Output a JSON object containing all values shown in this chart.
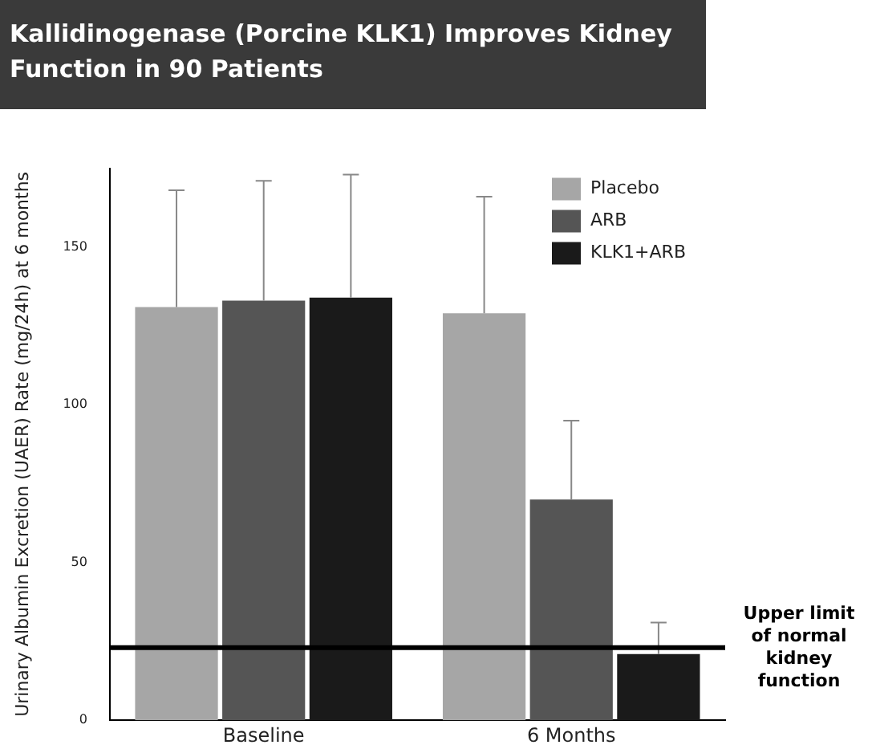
{
  "chart_data": {
    "type": "bar",
    "title": "Kallidinogenase (Porcine KLK1) Improves Kidney Function in 90 Patients",
    "ylabel": "Urinary Albumin Excretion (UAER) Rate (mg/24h) at 6 months",
    "categories": [
      "Baseline",
      "6 Months"
    ],
    "series": [
      {
        "name": "Placebo",
        "color": "#a6a6a6",
        "values": [
          131,
          129
        ],
        "errors": [
          [
            131,
            168
          ],
          [
            129,
            166
          ]
        ]
      },
      {
        "name": "ARB",
        "color": "#555555",
        "values": [
          133,
          70
        ],
        "errors": [
          [
            133,
            171
          ],
          [
            70,
            95
          ]
        ]
      },
      {
        "name": "KLK1+ARB",
        "color": "#1a1a1a",
        "values": [
          134,
          21
        ],
        "errors": [
          [
            134,
            173
          ],
          [
            21,
            31
          ]
        ]
      }
    ],
    "ylim": [
      0,
      175
    ],
    "yticks": [
      0,
      50,
      100,
      150
    ],
    "grid": false,
    "legend": "top right",
    "ref_lines": [
      {
        "axis": "y",
        "value": 23,
        "label": "Upper limit of normal kidney function",
        "color": "#000000"
      }
    ]
  }
}
